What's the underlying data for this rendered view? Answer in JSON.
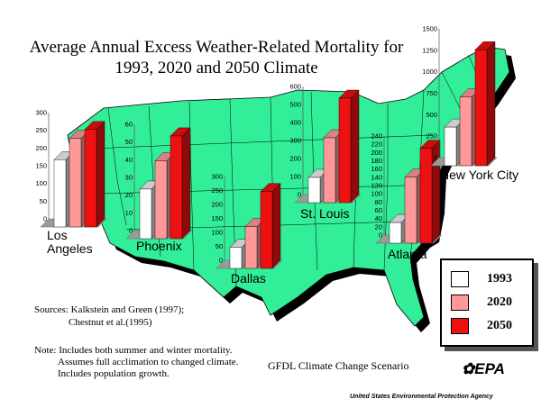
{
  "title_line1": "Average Annual Excess Weather-Related Mortality for",
  "title_line2": "1993, 2020 and 2050 Climate",
  "colors": {
    "y1993": "#ffffff",
    "y2020": "#ff9999",
    "y2050": "#ee1111",
    "map": "#33ee99"
  },
  "legend": [
    {
      "label": "1993",
      "color": "#ffffff"
    },
    {
      "label": "2020",
      "color": "#ff9999"
    },
    {
      "label": "2050",
      "color": "#ee1111"
    }
  ],
  "chart_data": [
    {
      "type": "bar",
      "city": "Los Angeles",
      "label_lines": [
        "Los",
        "Angeles"
      ],
      "series_names": [
        "1993",
        "2020",
        "2050"
      ],
      "values": [
        190,
        250,
        275
      ],
      "ylim": [
        0,
        300
      ],
      "ticks": [
        "0",
        "50",
        "100",
        "150",
        "200",
        "250",
        "300"
      ]
    },
    {
      "type": "bar",
      "city": "Phoenix",
      "label_lines": [
        "Phoenix"
      ],
      "series_names": [
        "1993",
        "2020",
        "2050"
      ],
      "values": [
        28,
        44,
        58
      ],
      "ylim": [
        0,
        60
      ],
      "ticks": [
        "0",
        "10",
        "20",
        "30",
        "40",
        "50",
        "60"
      ]
    },
    {
      "type": "bar",
      "city": "Dallas",
      "label_lines": [
        "Dallas"
      ],
      "series_names": [
        "1993",
        "2020",
        "2050"
      ],
      "values": [
        75,
        150,
        275
      ],
      "ylim": [
        0,
        300
      ],
      "ticks": [
        "0",
        "50",
        "100",
        "150",
        "200",
        "250",
        "300"
      ]
    },
    {
      "type": "bar",
      "city": "St. Louis",
      "label_lines": [
        "St. Louis"
      ],
      "series_names": [
        "1993",
        "2020",
        "2050"
      ],
      "values": [
        140,
        360,
        580
      ],
      "ylim": [
        0,
        600
      ],
      "ticks": [
        "0",
        "100",
        "200",
        "300",
        "400",
        "500",
        "600"
      ]
    },
    {
      "type": "bar",
      "city": "Atlanta",
      "label_lines": [
        "Atlanta"
      ],
      "series_names": [
        "1993",
        "2020",
        "2050"
      ],
      "values": [
        50,
        160,
        230
      ],
      "ylim": [
        0,
        240
      ],
      "ticks": [
        "0",
        "20",
        "40",
        "60",
        "80",
        "100",
        "120",
        "140",
        "160",
        "180",
        "200",
        "220",
        "240"
      ]
    },
    {
      "type": "bar",
      "city": "New York City",
      "label_lines": [
        "New York City"
      ],
      "series_names": [
        "1993",
        "2020",
        "2050"
      ],
      "values": [
        450,
        800,
        1350
      ],
      "ylim": [
        0,
        1500
      ],
      "ticks": [
        "0",
        "250",
        "500",
        "750",
        "1000",
        "1250",
        "1500"
      ]
    }
  ],
  "sources": {
    "line1": "Sources: Kalkstein and Green (1997);",
    "line2": "Chestnut et al.(1995)"
  },
  "note": {
    "line1": "Note: Includes both summer and winter mortality.",
    "line2": "Assumes full acclimation to changed climate.",
    "line3": "Includes population growth."
  },
  "scenario": "GFDL Climate Change Scenario",
  "logo_text": "EPA",
  "agency": "United States Environmental Protection Agency"
}
